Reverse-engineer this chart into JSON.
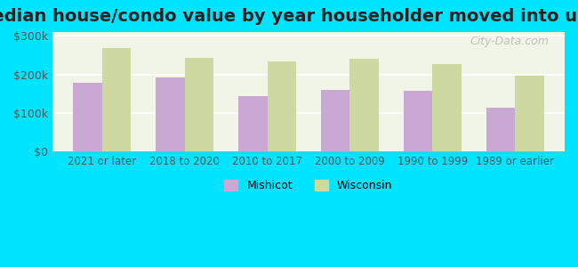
{
  "title": "Median house/condo value by year householder moved into unit",
  "categories": [
    "2021 or later",
    "2018 to 2020",
    "2010 to 2017",
    "2000 to 2009",
    "1990 to 1999",
    "1989 or earlier"
  ],
  "mishicot": [
    178000,
    193000,
    143000,
    160000,
    158000,
    113000
  ],
  "wisconsin": [
    268000,
    243000,
    233000,
    240000,
    228000,
    197000
  ],
  "mishicot_color": "#c9a8d4",
  "wisconsin_color": "#ccd9a0",
  "background_outer": "#00e5ff",
  "background_inner": "#f0f5e8",
  "yticks": [
    0,
    100000,
    200000,
    300000
  ],
  "ylabels": [
    "$0",
    "$100k",
    "$200k",
    "$300k"
  ],
  "ylim": [
    0,
    310000
  ],
  "title_fontsize": 14,
  "legend_mishicot": "Mishicot",
  "legend_wisconsin": "Wisconsin",
  "watermark": "City-Data.com"
}
